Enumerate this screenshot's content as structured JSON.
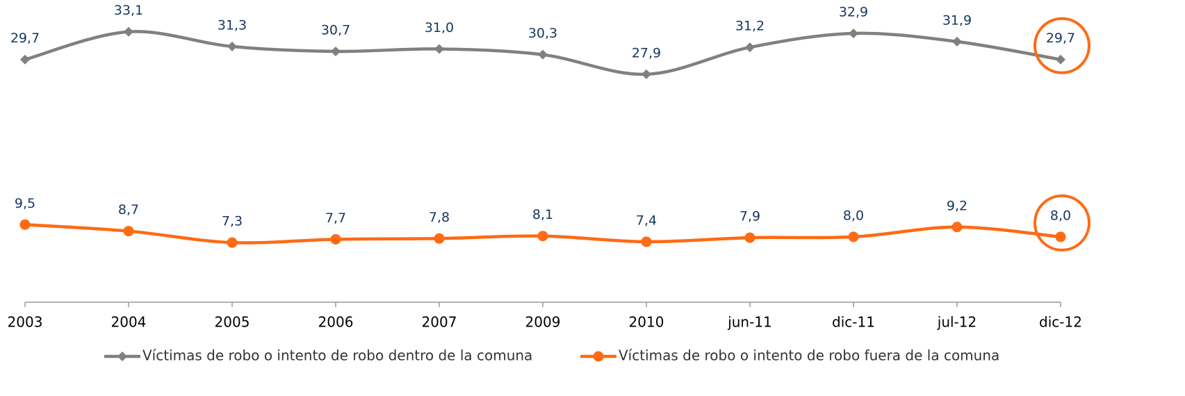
{
  "chart_data": {
    "type": "line",
    "categories": [
      "2003",
      "2004",
      "2005",
      "2006",
      "2007",
      "2009",
      "2010",
      "jun-11",
      "dic-11",
      "jul-12",
      "dic-12"
    ],
    "series": [
      {
        "name": "Víctimas de robo o intento de robo dentro de la comuna",
        "color": "#808080",
        "marker": "diamond",
        "values": [
          29.7,
          33.1,
          31.3,
          30.7,
          31.0,
          30.3,
          27.9,
          31.2,
          32.9,
          31.9,
          29.7
        ],
        "value_labels": [
          "29,7",
          "33,1",
          "31,3",
          "30,7",
          "31,0",
          "30,3",
          "27,9",
          "31,2",
          "32,9",
          "31,9",
          "29,7"
        ]
      },
      {
        "name": "Víctimas de robo o intento de robo fuera de la comuna",
        "color": "#ff6a13",
        "marker": "circle",
        "values": [
          9.5,
          8.7,
          7.3,
          7.7,
          7.8,
          8.1,
          7.4,
          7.9,
          8.0,
          9.2,
          8.0
        ],
        "value_labels": [
          "9,5",
          "8,7",
          "7,3",
          "7,7",
          "7,8",
          "8,1",
          "7,4",
          "7,9",
          "8,0",
          "9,2",
          "8,0"
        ]
      }
    ],
    "ylim": [
      0,
      35
    ],
    "legend": "bottom"
  }
}
